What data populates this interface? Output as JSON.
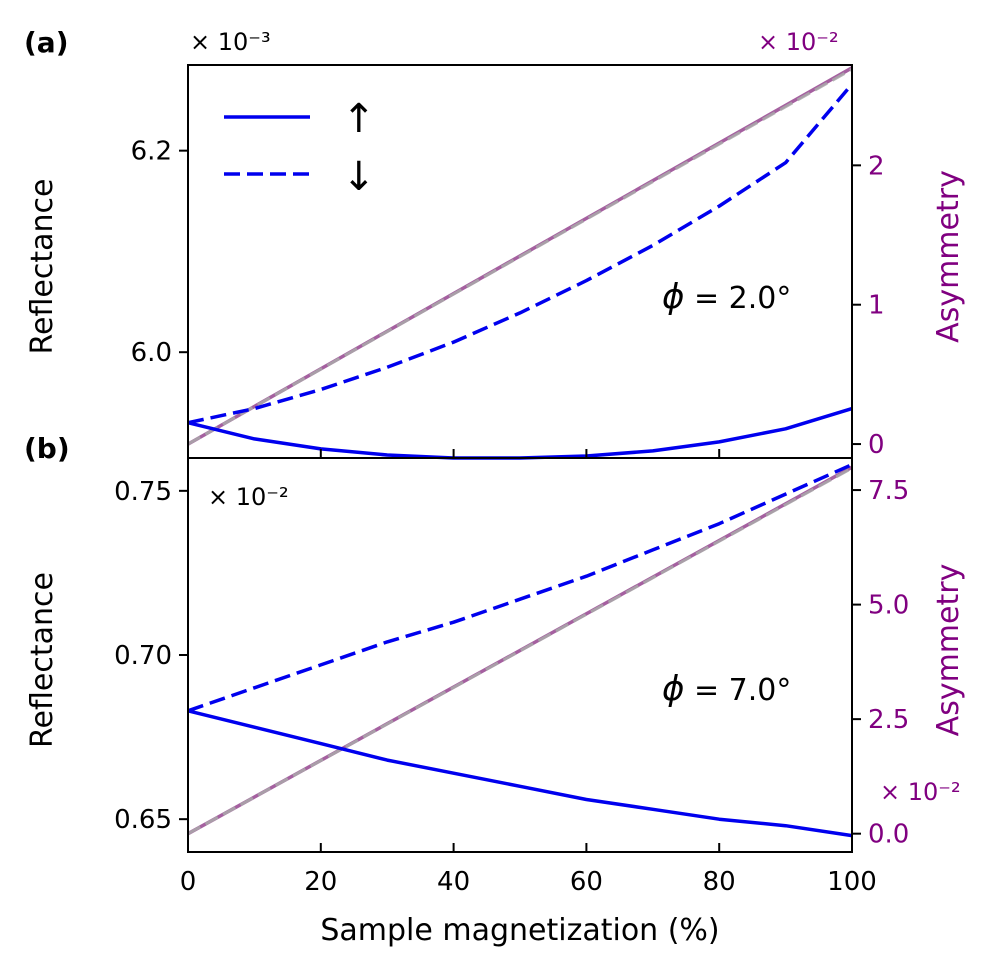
{
  "chart_data": [
    {
      "panel": "(a)",
      "type": "line",
      "annotation": {
        "symbol": "ϕ",
        "text": " = 2.0°"
      },
      "x_ticks": [
        0,
        20,
        40,
        60,
        80,
        100
      ],
      "y_left": {
        "label": "Reflectance",
        "multiplier": "× 10⁻³",
        "lim": [
          5.895,
          6.285
        ],
        "ticks": [
          6.0,
          6.2
        ],
        "tick_labels": [
          "6.0",
          "6.2"
        ]
      },
      "y_right": {
        "label": "Asymmetry",
        "multiplier": "× 10⁻²",
        "lim": [
          -0.1,
          2.72
        ],
        "ticks": [
          0,
          1,
          2
        ],
        "tick_labels": [
          "0",
          "1",
          "2"
        ]
      },
      "legend": {
        "up": "↑",
        "down": "↓"
      },
      "series": [
        {
          "spin": "up",
          "axis": "left",
          "style": "solid",
          "color": "#0000ee",
          "x": [
            0,
            10,
            20,
            30,
            40,
            50,
            60,
            70,
            80,
            90,
            100
          ],
          "y": [
            5.93,
            5.914,
            5.904,
            5.898,
            5.895,
            5.895,
            5.897,
            5.902,
            5.911,
            5.924,
            5.944
          ]
        },
        {
          "spin": "down",
          "axis": "left",
          "style": "dashed",
          "color": "#0000ee",
          "x": [
            0,
            10,
            20,
            30,
            40,
            50,
            60,
            70,
            80,
            90,
            100
          ],
          "y": [
            5.93,
            5.944,
            5.963,
            5.985,
            6.01,
            6.039,
            6.071,
            6.106,
            6.145,
            6.188,
            6.266
          ]
        },
        {
          "name": "",
          "axis": "right",
          "style": "solid",
          "color": "#9b4f96",
          "x": [
            0,
            100
          ],
          "y": [
            0.0,
            2.7
          ]
        },
        {
          "name": "",
          "axis": "right",
          "style": "dashed",
          "color": "#a9a9a9",
          "x": [
            0,
            100
          ],
          "y": [
            0.0,
            2.69
          ]
        }
      ]
    },
    {
      "panel": "(b)",
      "type": "line",
      "annotation": {
        "symbol": "ϕ",
        "text": " = 7.0°"
      },
      "x_ticks": [
        0,
        20,
        40,
        60,
        80,
        100
      ],
      "x_tick_labels": [
        "0",
        "20",
        "40",
        "60",
        "80",
        "100"
      ],
      "xlabel": "Sample magnetization (%)",
      "y_left": {
        "label": "Reflectance",
        "multiplier": "× 10⁻²",
        "lim": [
          0.64,
          0.76
        ],
        "ticks": [
          0.65,
          0.7,
          0.75
        ],
        "tick_labels": [
          "0.65",
          "0.70",
          "0.75"
        ]
      },
      "y_right": {
        "label": "Asymmetry",
        "multiplier": "× 10⁻²",
        "lim": [
          -0.4,
          8.2
        ],
        "ticks": [
          0.0,
          2.5,
          5.0,
          7.5
        ],
        "tick_labels": [
          "0.0",
          "2.5",
          "5.0",
          "7.5"
        ]
      },
      "series": [
        {
          "spin": "up",
          "axis": "left",
          "style": "solid",
          "color": "#0000ee",
          "x": [
            0,
            10,
            20,
            30,
            40,
            50,
            60,
            70,
            80,
            90,
            100
          ],
          "y": [
            0.683,
            0.678,
            0.673,
            0.668,
            0.664,
            0.66,
            0.656,
            0.653,
            0.65,
            0.648,
            0.645
          ]
        },
        {
          "spin": "down",
          "axis": "left",
          "style": "dashed",
          "color": "#0000ee",
          "x": [
            0,
            10,
            20,
            30,
            40,
            50,
            60,
            70,
            80,
            90,
            100
          ],
          "y": [
            0.683,
            0.69,
            0.697,
            0.704,
            0.71,
            0.717,
            0.724,
            0.732,
            0.74,
            0.749,
            0.758
          ]
        },
        {
          "name": "",
          "axis": "right",
          "style": "solid",
          "color": "#9b4f96",
          "x": [
            0,
            100
          ],
          "y": [
            0.0,
            8.0
          ]
        },
        {
          "name": "",
          "axis": "right",
          "style": "dashed",
          "color": "#a9a9a9",
          "x": [
            0,
            100
          ],
          "y": [
            0.0,
            7.98
          ]
        }
      ]
    }
  ]
}
